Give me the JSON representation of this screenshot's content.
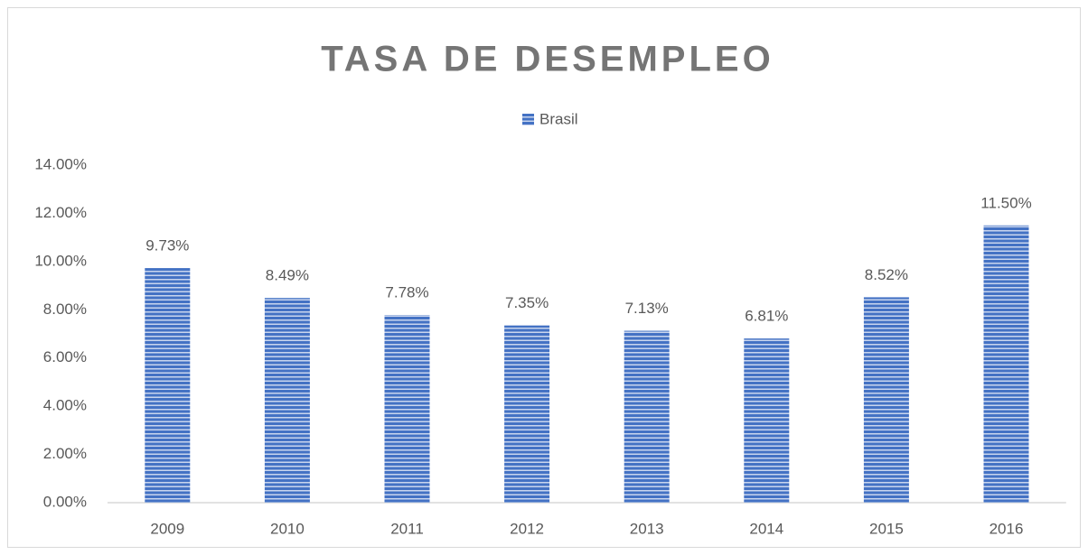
{
  "chart_data": {
    "type": "bar",
    "title": "TASA DE DESEMPLEO",
    "categories": [
      "2009",
      "2010",
      "2011",
      "2012",
      "2013",
      "2014",
      "2015",
      "2016"
    ],
    "series": [
      {
        "name": "Brasil",
        "color": "#4472c4",
        "values": [
          9.73,
          8.49,
          7.78,
          7.35,
          7.13,
          6.81,
          8.52,
          11.5
        ],
        "value_labels": [
          "9.73%",
          "8.49%",
          "7.78%",
          "7.35%",
          "7.13%",
          "6.81%",
          "8.52%",
          "11.50%"
        ]
      }
    ],
    "ylim": [
      0,
      14
    ],
    "yticks": [
      {
        "value": 0,
        "label": "0.00%"
      },
      {
        "value": 2,
        "label": "2.00%"
      },
      {
        "value": 4,
        "label": "4.00%"
      },
      {
        "value": 6,
        "label": "6.00%"
      },
      {
        "value": 8,
        "label": "8.00%"
      },
      {
        "value": 10,
        "label": "10.00%"
      },
      {
        "value": 12,
        "label": "12.00%"
      },
      {
        "value": 14,
        "label": "14.00%"
      }
    ],
    "grid": false,
    "legend": "top"
  }
}
